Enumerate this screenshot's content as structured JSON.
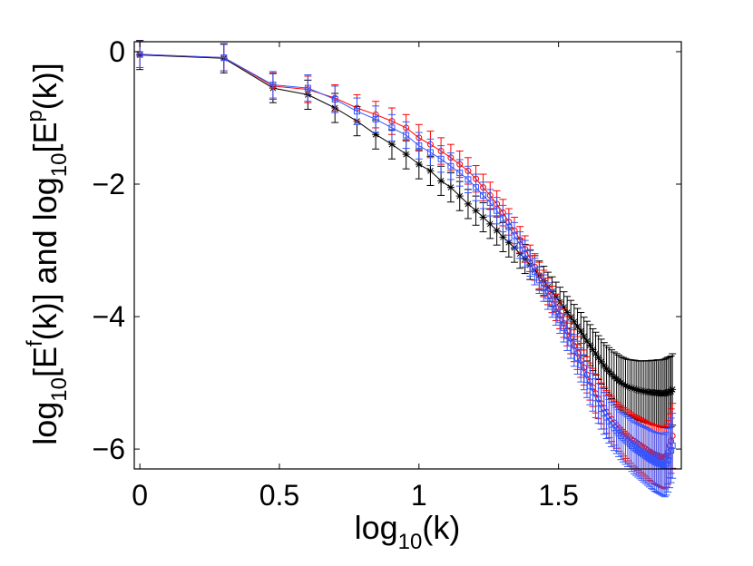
{
  "chart_data": {
    "type": "line",
    "xlabel": {
      "base": "log",
      "sub": "10",
      "rest": "(k)"
    },
    "ylabel": {
      "p1": "log",
      "s1": "10",
      "p2": "[E",
      "sup1": "f",
      "p3": "(k)] and log",
      "s2": "10",
      "p4": "[E",
      "sup2": "p",
      "p5": "(k)]"
    },
    "xlim": [
      -0.02,
      1.94
    ],
    "ylim": [
      -6.3,
      0.15
    ],
    "xticks": [
      0,
      0.5,
      1,
      1.5
    ],
    "xtick_labels": [
      "0",
      "0.5",
      "1",
      "1.5"
    ],
    "yticks": [
      0,
      -2,
      -4,
      -6
    ],
    "ytick_labels": [
      "0",
      "−2",
      "−4",
      "−6"
    ],
    "grid": false,
    "series": [
      {
        "name": "black",
        "color": "#000000",
        "marker": "star",
        "x": [
          0,
          0.301,
          0.477,
          0.602,
          0.699,
          0.778,
          0.845,
          0.903,
          0.954,
          1.0,
          1.041,
          1.079,
          1.114,
          1.146,
          1.176,
          1.204,
          1.23,
          1.255,
          1.279,
          1.301,
          1.322,
          1.342,
          1.362,
          1.38,
          1.398,
          1.415,
          1.431,
          1.447,
          1.462,
          1.477,
          1.491,
          1.505,
          1.519,
          1.531,
          1.544,
          1.556,
          1.568,
          1.58,
          1.591,
          1.602,
          1.613,
          1.623,
          1.633,
          1.643,
          1.653,
          1.663,
          1.672,
          1.681,
          1.69,
          1.699,
          1.708,
          1.716,
          1.724,
          1.732,
          1.74,
          1.748,
          1.756,
          1.763,
          1.771,
          1.778,
          1.785,
          1.792,
          1.799,
          1.806,
          1.813,
          1.82,
          1.826,
          1.833,
          1.839,
          1.845,
          1.851,
          1.857,
          1.863,
          1.869,
          1.875,
          1.881,
          1.886,
          1.892,
          1.898,
          1.903,
          1.908
        ],
        "y": [
          -0.05,
          -0.1,
          -0.55,
          -0.65,
          -0.85,
          -1.05,
          -1.25,
          -1.4,
          -1.55,
          -1.7,
          -1.8,
          -1.95,
          -2.05,
          -2.18,
          -2.3,
          -2.4,
          -2.5,
          -2.6,
          -2.7,
          -2.8,
          -2.88,
          -2.96,
          -3.05,
          -3.13,
          -3.22,
          -3.3,
          -3.38,
          -3.46,
          -3.55,
          -3.62,
          -3.7,
          -3.78,
          -3.86,
          -3.94,
          -4.01,
          -4.08,
          -4.15,
          -4.22,
          -4.3,
          -4.37,
          -4.43,
          -4.5,
          -4.56,
          -4.62,
          -4.68,
          -4.74,
          -4.79,
          -4.83,
          -4.87,
          -4.91,
          -4.94,
          -4.97,
          -5.0,
          -5.02,
          -5.04,
          -5.06,
          -5.07,
          -5.08,
          -5.09,
          -5.1,
          -5.11,
          -5.12,
          -5.12,
          -5.13,
          -5.13,
          -5.14,
          -5.14,
          -5.14,
          -5.15,
          -5.15,
          -5.15,
          -5.15,
          -5.16,
          -5.16,
          -5.16,
          -5.16,
          -5.15,
          -5.14,
          -5.14,
          -5.13,
          -5.1
        ],
        "err": 0.22
      },
      {
        "name": "red",
        "color": "#ff0000",
        "marker": "circle",
        "x": [
          0,
          0.301,
          0.477,
          0.602,
          0.699,
          0.778,
          0.845,
          0.903,
          0.954,
          1.0,
          1.041,
          1.079,
          1.114,
          1.146,
          1.176,
          1.204,
          1.23,
          1.255,
          1.279,
          1.301,
          1.322,
          1.342,
          1.362,
          1.38,
          1.398,
          1.415,
          1.431,
          1.447,
          1.462,
          1.477,
          1.491,
          1.505,
          1.519,
          1.531,
          1.544,
          1.556,
          1.568,
          1.58,
          1.591,
          1.602,
          1.613,
          1.623,
          1.633,
          1.643,
          1.653,
          1.663,
          1.672,
          1.681,
          1.69,
          1.699,
          1.708,
          1.716,
          1.724,
          1.732,
          1.74,
          1.748,
          1.756,
          1.763,
          1.771,
          1.778,
          1.785,
          1.792,
          1.799,
          1.806,
          1.813,
          1.82,
          1.826,
          1.833,
          1.839,
          1.845,
          1.851,
          1.857,
          1.863,
          1.869,
          1.875,
          1.881,
          1.886,
          1.892,
          1.898,
          1.903,
          1.908
        ],
        "y": [
          -0.04,
          -0.09,
          -0.52,
          -0.57,
          -0.7,
          -0.85,
          -0.95,
          -1.05,
          -1.15,
          -1.3,
          -1.4,
          -1.5,
          -1.6,
          -1.7,
          -1.8,
          -1.92,
          -2.05,
          -2.17,
          -2.3,
          -2.43,
          -2.57,
          -2.7,
          -2.84,
          -2.98,
          -3.12,
          -3.25,
          -3.38,
          -3.5,
          -3.62,
          -3.74,
          -3.86,
          -3.98,
          -4.1,
          -4.22,
          -4.33,
          -4.44,
          -4.55,
          -4.66,
          -4.77,
          -4.88,
          -4.98,
          -5.07,
          -5.16,
          -5.24,
          -5.31,
          -5.38,
          -5.44,
          -5.5,
          -5.55,
          -5.6,
          -5.64,
          -5.68,
          -5.71,
          -5.74,
          -5.77,
          -5.8,
          -5.83,
          -5.86,
          -5.88,
          -5.9,
          -5.92,
          -5.94,
          -5.96,
          -5.98,
          -6.0,
          -6.02,
          -6.04,
          -6.05,
          -6.07,
          -6.08,
          -6.09,
          -6.1,
          -6.11,
          -6.12,
          -6.12,
          -6.13,
          -6.1,
          -6.05,
          -5.95,
          -5.88,
          -5.8
        ],
        "err": 0.2
      },
      {
        "name": "blue",
        "color": "#3355ff",
        "marker": "square",
        "x": [
          0,
          0.301,
          0.477,
          0.602,
          0.699,
          0.778,
          0.845,
          0.903,
          0.954,
          1.0,
          1.041,
          1.079,
          1.114,
          1.146,
          1.176,
          1.204,
          1.23,
          1.255,
          1.279,
          1.301,
          1.322,
          1.342,
          1.362,
          1.38,
          1.398,
          1.415,
          1.431,
          1.447,
          1.462,
          1.477,
          1.491,
          1.505,
          1.519,
          1.531,
          1.544,
          1.556,
          1.568,
          1.58,
          1.591,
          1.602,
          1.613,
          1.623,
          1.633,
          1.643,
          1.653,
          1.663,
          1.672,
          1.681,
          1.69,
          1.699,
          1.708,
          1.716,
          1.724,
          1.732,
          1.74,
          1.748,
          1.756,
          1.763,
          1.771,
          1.778,
          1.785,
          1.792,
          1.799,
          1.806,
          1.813,
          1.82,
          1.826,
          1.833,
          1.839,
          1.845,
          1.851,
          1.857,
          1.863,
          1.869,
          1.875,
          1.881,
          1.886,
          1.892,
          1.898,
          1.903,
          1.908
        ],
        "y": [
          -0.04,
          -0.09,
          -0.5,
          -0.55,
          -0.72,
          -0.9,
          -1.02,
          -1.15,
          -1.26,
          -1.42,
          -1.52,
          -1.62,
          -1.73,
          -1.83,
          -1.93,
          -2.05,
          -2.17,
          -2.28,
          -2.4,
          -2.52,
          -2.65,
          -2.78,
          -2.92,
          -3.05,
          -3.19,
          -3.32,
          -3.45,
          -3.57,
          -3.69,
          -3.81,
          -3.93,
          -4.05,
          -4.17,
          -4.29,
          -4.4,
          -4.51,
          -4.62,
          -4.73,
          -4.84,
          -4.95,
          -5.05,
          -5.14,
          -5.23,
          -5.31,
          -5.39,
          -5.46,
          -5.52,
          -5.58,
          -5.63,
          -5.68,
          -5.72,
          -5.76,
          -5.8,
          -5.83,
          -5.86,
          -5.89,
          -5.92,
          -5.95,
          -5.98,
          -6.0,
          -6.02,
          -6.04,
          -6.06,
          -6.08,
          -6.1,
          -6.12,
          -6.14,
          -6.16,
          -6.17,
          -6.19,
          -6.2,
          -6.21,
          -6.22,
          -6.23,
          -6.24,
          -6.25,
          -6.22,
          -6.17,
          -6.1,
          -6.02,
          -5.95
        ],
        "err": 0.2
      }
    ]
  }
}
